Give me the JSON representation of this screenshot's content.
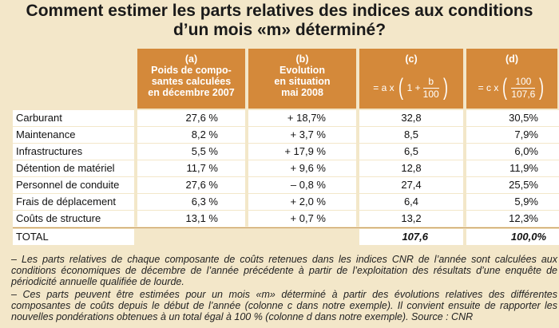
{
  "title": {
    "line1": "Comment estimer les parts relatives des indices aux conditions",
    "line2": "d’un mois «m» déterminé?"
  },
  "headers": {
    "a": {
      "letter": "(a)",
      "l1": "Poids de compo-",
      "l2": "santes calculées",
      "l3": "en décembre 2007"
    },
    "b": {
      "letter": "(b)",
      "l1": "Evolution",
      "l2": "en situation",
      "l3": "mai 2008"
    },
    "c": {
      "letter": "(c)",
      "pre": "= a x",
      "one": "1 +",
      "num": "b",
      "den": "100"
    },
    "d": {
      "letter": "(d)",
      "pre": "= c x",
      "num": "100",
      "den": "107,6"
    }
  },
  "rows": [
    {
      "label": "Carburant",
      "a": "27,6 %",
      "b": "+ 18,7%",
      "c": "32,8",
      "d": "30,5%"
    },
    {
      "label": "Maintenance",
      "a": "8,2 %",
      "b": "+ 3,7 %",
      "c": "8,5",
      "d": "7,9%"
    },
    {
      "label": "Infrastructures",
      "a": "5,5 %",
      "b": "+ 17,9 %",
      "c": "6,5",
      "d": "6,0%"
    },
    {
      "label": "Détention de matériel",
      "a": "11,7 %",
      "b": "+ 9,6 %",
      "c": "12,8",
      "d": "11,9%"
    },
    {
      "label": "Personnel de conduite",
      "a": "27,6 %",
      "b": "– 0,8 %",
      "c": "27,4",
      "d": "25,5%"
    },
    {
      "label": "Frais de déplacement",
      "a": "6,3 %",
      "b": "+ 2,0 %",
      "c": "6,4",
      "d": "5,9%"
    },
    {
      "label": "Coûts de structure",
      "a": "13,1 %",
      "b": "+ 0,7 %",
      "c": "13,2",
      "d": "12,3%"
    }
  ],
  "total": {
    "label": "TOTAL",
    "c": "107,6",
    "d": "100,0%"
  },
  "notes": [
    "– Les parts relatives de chaque composante de coûts retenues dans les indices CNR de l’année sont calculées aux conditions économiques de décembre de l’année précédente à partir de l’exploitation des résultats d’une enquête de périodicité annuelle qualifiée de lourde.",
    "– Ces parts peuvent être estimées pour un mois «m» déterminé à partir des évolutions relatives des différentes composantes de coûts depuis le début de l’année (colonne c dans notre exemple). Il convient ensuite de rapporter les nouvelles pondérations obtenues à un total égal à 100 % (colonne d dans notre exemple).  Source : CNR"
  ]
}
